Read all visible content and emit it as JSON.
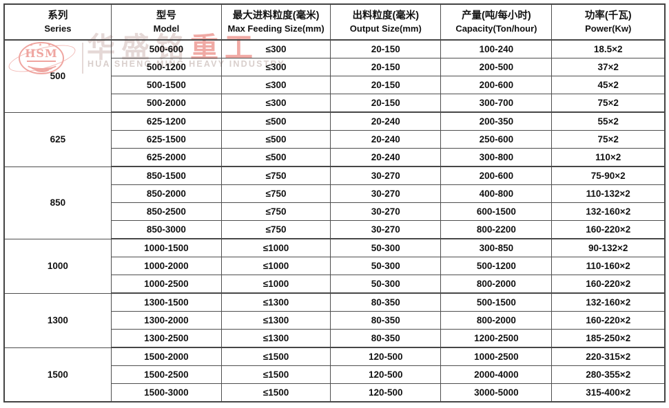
{
  "watermark": {
    "logo_text": "HSM",
    "stars": "★ ★ ★",
    "company_zh_light": "华盛铭",
    "company_zh_red": "重工",
    "company_en": "HUA SHENG MING HEAVY INDUSTRY",
    "colors": {
      "logo": "#efa5a0",
      "zh_light": "#e5d8d6",
      "zh_red": "#f0a9a4",
      "en": "#d9cfcc"
    }
  },
  "table": {
    "border_color": "#4d4d4d",
    "text_color": "#111111",
    "columns": [
      {
        "zh": "系列",
        "en": "Series"
      },
      {
        "zh": "型号",
        "en": "Model"
      },
      {
        "zh": "最大进料粒度(毫米)",
        "en": "Max Feeding Size(mm)"
      },
      {
        "zh": "出料粒度(毫米)",
        "en": "Output Size(mm)"
      },
      {
        "zh": "产量(吨/每小时)",
        "en": "Capacity(Ton/hour)"
      },
      {
        "zh": "功率(千瓦)",
        "en": "Power(Kw)"
      }
    ],
    "groups": [
      {
        "series": "500",
        "rows": [
          [
            "500-600",
            "≤300",
            "20-150",
            "100-240",
            "18.5×2"
          ],
          [
            "500-1200",
            "≤300",
            "20-150",
            "200-500",
            "37×2"
          ],
          [
            "500-1500",
            "≤300",
            "20-150",
            "200-600",
            "45×2"
          ],
          [
            "500-2000",
            "≤300",
            "20-150",
            "300-700",
            "75×2"
          ]
        ]
      },
      {
        "series": "625",
        "rows": [
          [
            "625-1200",
            "≤500",
            "20-240",
            "200-350",
            "55×2"
          ],
          [
            "625-1500",
            "≤500",
            "20-240",
            "250-600",
            "75×2"
          ],
          [
            "625-2000",
            "≤500",
            "20-240",
            "300-800",
            "110×2"
          ]
        ]
      },
      {
        "series": "850",
        "rows": [
          [
            "850-1500",
            "≤750",
            "30-270",
            "200-600",
            "75-90×2"
          ],
          [
            "850-2000",
            "≤750",
            "30-270",
            "400-800",
            "110-132×2"
          ],
          [
            "850-2500",
            "≤750",
            "30-270",
            "600-1500",
            "132-160×2"
          ],
          [
            "850-3000",
            "≤750",
            "30-270",
            "800-2200",
            "160-220×2"
          ]
        ]
      },
      {
        "series": "1000",
        "rows": [
          [
            "1000-1500",
            "≤1000",
            "50-300",
            "300-850",
            "90-132×2"
          ],
          [
            "1000-2000",
            "≤1000",
            "50-300",
            "500-1200",
            "110-160×2"
          ],
          [
            "1000-2500",
            "≤1000",
            "50-300",
            "800-2000",
            "160-220×2"
          ]
        ]
      },
      {
        "series": "1300",
        "rows": [
          [
            "1300-1500",
            "≤1300",
            "80-350",
            "500-1500",
            "132-160×2"
          ],
          [
            "1300-2000",
            "≤1300",
            "80-350",
            "800-2000",
            "160-220×2"
          ],
          [
            "1300-2500",
            "≤1300",
            "80-350",
            "1200-2500",
            "185-250×2"
          ]
        ]
      },
      {
        "series": "1500",
        "rows": [
          [
            "1500-2000",
            "≤1500",
            "120-500",
            "1000-2500",
            "220-315×2"
          ],
          [
            "1500-2500",
            "≤1500",
            "120-500",
            "2000-4000",
            "280-355×2"
          ],
          [
            "1500-3000",
            "≤1500",
            "120-500",
            "3000-5000",
            "315-400×2"
          ]
        ]
      }
    ]
  }
}
